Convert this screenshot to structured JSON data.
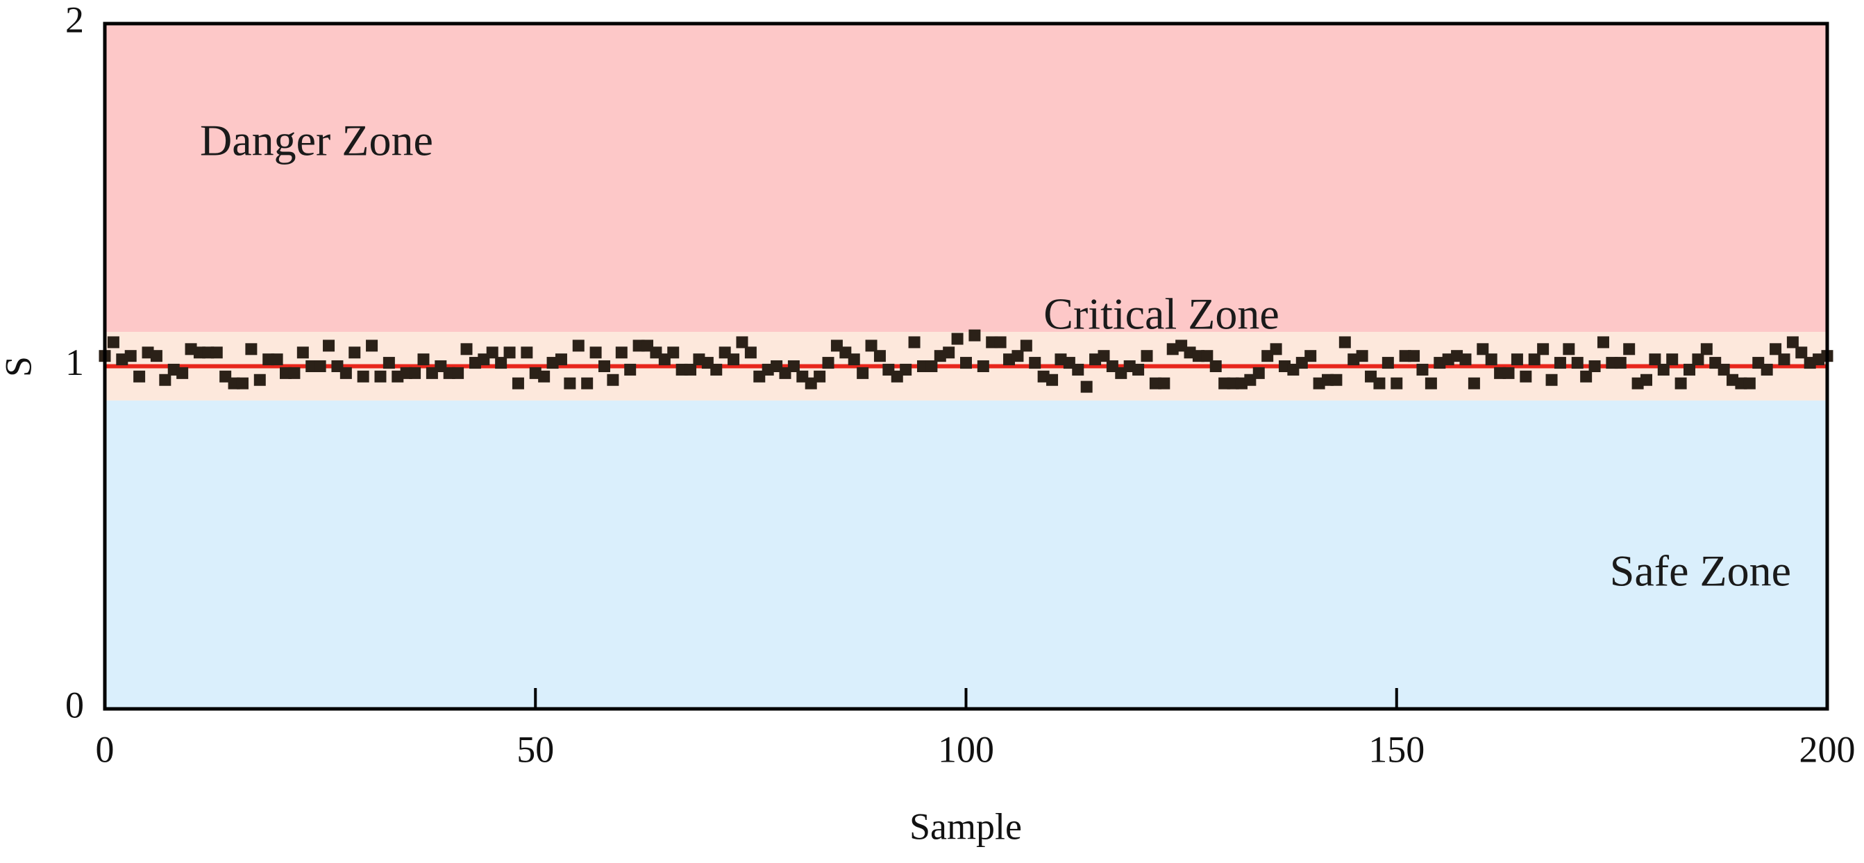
{
  "chart_data": {
    "type": "scatter",
    "xlabel": "Sample",
    "ylabel": "S",
    "xlim": [
      0,
      200
    ],
    "ylim": [
      0,
      2
    ],
    "xticks": [
      0,
      50,
      100,
      150,
      200
    ],
    "yticks": [
      0,
      1,
      2
    ],
    "marker_color": "#2b2118",
    "reference_line": {
      "value": 1,
      "color": "#e8261c"
    },
    "zones": [
      {
        "label": "Danger Zone",
        "range": [
          1.1,
          2
        ],
        "color": "#fdc8c8"
      },
      {
        "label": "Critical Zone",
        "range": [
          0.9,
          1.1
        ],
        "color": "#fde8dc"
      },
      {
        "label": "Safe Zone",
        "range": [
          0,
          0.9
        ],
        "color": "#daeffc"
      }
    ],
    "x": [
      0,
      1,
      2,
      3,
      4,
      5,
      6,
      7,
      8,
      9,
      10,
      11,
      12,
      13,
      14,
      15,
      16,
      17,
      18,
      19,
      20,
      21,
      22,
      23,
      24,
      25,
      26,
      27,
      28,
      29,
      30,
      31,
      32,
      33,
      34,
      35,
      36,
      37,
      38,
      39,
      40,
      41,
      42,
      43,
      44,
      45,
      46,
      47,
      48,
      49,
      50,
      51,
      52,
      53,
      54,
      55,
      56,
      57,
      58,
      59,
      60,
      61,
      62,
      63,
      64,
      65,
      66,
      67,
      68,
      69,
      70,
      71,
      72,
      73,
      74,
      75,
      76,
      77,
      78,
      79,
      80,
      81,
      82,
      83,
      84,
      85,
      86,
      87,
      88,
      89,
      90,
      91,
      92,
      93,
      94,
      95,
      96,
      97,
      98,
      99,
      100,
      101,
      102,
      103,
      104,
      105,
      106,
      107,
      108,
      109,
      110,
      111,
      112,
      113,
      114,
      115,
      116,
      117,
      118,
      119,
      120,
      121,
      122,
      123,
      124,
      125,
      126,
      127,
      128,
      129,
      130,
      131,
      132,
      133,
      134,
      135,
      136,
      137,
      138,
      139,
      140,
      141,
      142,
      143,
      144,
      145,
      146,
      147,
      148,
      149,
      150,
      151,
      152,
      153,
      154,
      155,
      156,
      157,
      158,
      159,
      160,
      161,
      162,
      163,
      164,
      165,
      166,
      167,
      168,
      169,
      170,
      171,
      172,
      173,
      174,
      175,
      176,
      177,
      178,
      179,
      180,
      181,
      182,
      183,
      184,
      185,
      186,
      187,
      188,
      189,
      190,
      191,
      192,
      193,
      194,
      195,
      196,
      197,
      198,
      199,
      200
    ],
    "values": [
      1.03,
      1.07,
      1.02,
      1.03,
      0.97,
      1.04,
      1.03,
      0.96,
      0.99,
      0.98,
      1.05,
      1.04,
      1.04,
      1.04,
      0.97,
      0.95,
      0.95,
      1.05,
      0.96,
      1.02,
      1.02,
      0.98,
      0.98,
      1.04,
      1.0,
      1.0,
      1.06,
      1.0,
      0.98,
      1.04,
      0.97,
      1.06,
      0.97,
      1.01,
      0.97,
      0.98,
      0.98,
      1.02,
      0.98,
      1.0,
      0.98,
      0.98,
      1.05,
      1.01,
      1.02,
      1.04,
      1.01,
      1.04,
      0.95,
      1.04,
      0.98,
      0.97,
      1.01,
      1.02,
      0.95,
      1.06,
      0.95,
      1.04,
      1.0,
      0.96,
      1.04,
      0.99,
      1.06,
      1.06,
      1.04,
      1.02,
      1.04,
      0.99,
      0.99,
      1.02,
      1.01,
      0.99,
      1.04,
      1.02,
      1.07,
      1.04,
      0.97,
      0.99,
      1.0,
      0.98,
      1.0,
      0.97,
      0.95,
      0.97,
      1.01,
      1.06,
      1.04,
      1.02,
      0.98,
      1.06,
      1.03,
      0.99,
      0.97,
      0.99,
      1.07,
      1.0,
      1.0,
      1.03,
      1.04,
      1.08,
      1.01,
      1.09,
      1.0,
      1.07,
      1.07,
      1.02,
      1.03,
      1.06,
      1.01,
      0.97,
      0.96,
      1.02,
      1.01,
      0.99,
      0.94,
      1.02,
      1.03,
      1.0,
      0.98,
      1.0,
      0.99,
      1.03,
      0.95,
      0.95,
      1.05,
      1.06,
      1.04,
      1.03,
      1.03,
      1.0,
      0.95,
      0.95,
      0.95,
      0.96,
      0.98,
      1.03,
      1.05,
      1.0,
      0.99,
      1.01,
      1.03,
      0.95,
      0.96,
      0.96,
      1.07,
      1.02,
      1.03,
      0.97,
      0.95,
      1.01,
      0.95,
      1.03,
      1.03,
      0.99,
      0.95,
      1.01,
      1.02,
      1.03,
      1.02,
      0.95,
      1.05,
      1.02,
      0.98,
      0.98,
      1.02,
      0.97,
      1.02,
      1.05,
      0.96,
      1.01,
      1.05,
      1.01,
      0.97,
      1.0,
      1.07,
      1.01,
      1.01,
      1.05,
      0.95,
      0.96,
      1.02,
      0.99,
      1.02,
      0.95,
      0.99,
      1.02,
      1.05,
      1.01,
      0.99,
      0.96,
      0.95,
      0.95,
      1.01,
      0.99,
      1.05,
      1.02,
      1.07,
      1.04,
      1.01,
      1.02,
      1.03
    ]
  }
}
